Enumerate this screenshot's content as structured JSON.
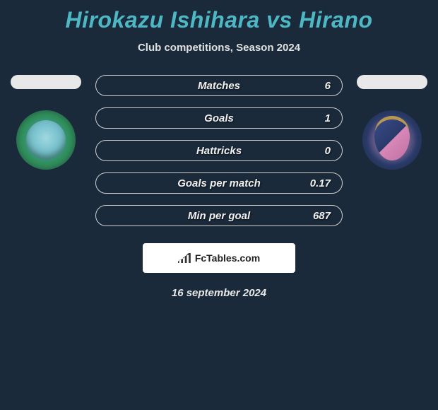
{
  "title": "Hirokazu Ishihara vs Hirano",
  "subtitle": "Club competitions, Season 2024",
  "colors": {
    "background": "#1a2a3a",
    "title_color": "#4db8c4",
    "text_color": "#ffffff",
    "bar_border": "#d0d0d0",
    "footer_bg": "#ffffff",
    "footer_text": "#222222"
  },
  "typography": {
    "title_fontsize": 32,
    "subtitle_fontsize": 15,
    "stat_label_fontsize": 15,
    "font_style": "italic",
    "font_weight": "bold"
  },
  "stats": [
    {
      "label": "Matches",
      "value": "6"
    },
    {
      "label": "Goals",
      "value": "1"
    },
    {
      "label": "Hattricks",
      "value": "0"
    },
    {
      "label": "Goals per match",
      "value": "0.17"
    },
    {
      "label": "Min per goal",
      "value": "687"
    }
  ],
  "bar_style": {
    "height": 30,
    "border_radius": 15,
    "gap": 16
  },
  "footer": {
    "brand": "FcTables.com"
  },
  "date": "16 september 2024",
  "badges": {
    "left": "shonan-bellmare-badge",
    "right": "cerezo-osaka-badge"
  }
}
